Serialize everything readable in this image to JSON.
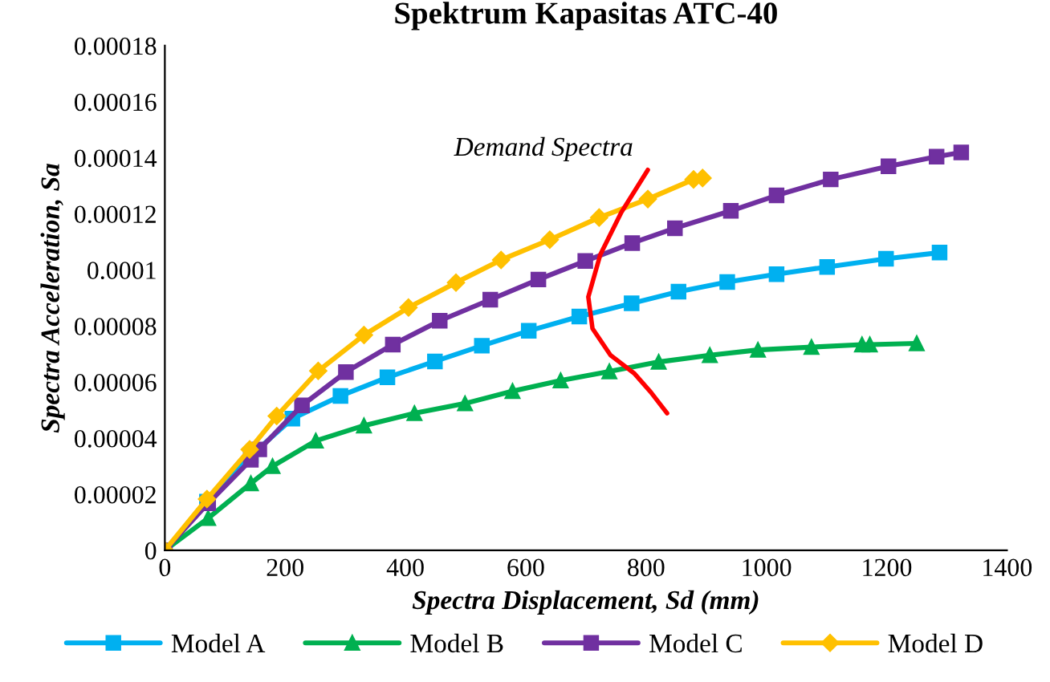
{
  "chart_data": {
    "type": "line",
    "title": "Spektrum Kapasitas ATC-40",
    "xlabel": "Spectra Displacement, Sd (mm)",
    "ylabel": "Spectra Acceleration, Sa",
    "xlim": [
      0,
      1400
    ],
    "xticks": [
      0,
      200,
      400,
      600,
      800,
      1000,
      1200,
      1400
    ],
    "ylim": [
      0,
      0.00018
    ],
    "yticks": [
      0,
      {
        "value": 2e-05,
        "label": "0.00002"
      },
      {
        "value": 4e-05,
        "label": "0.00004"
      },
      {
        "value": 6e-05,
        "label": "0.00006"
      },
      {
        "value": 8e-05,
        "label": "0.00008"
      },
      0.0001,
      0.00012,
      0.00014,
      0.00016,
      0.00018
    ],
    "grid": false,
    "legend": "bottom",
    "line_style": "solid",
    "annotations": [
      "Demand Spectra"
    ],
    "series": [
      {
        "name": "Model A",
        "color": "#00b0f0",
        "marker": "square",
        "x": [
          0,
          70,
          143,
          212,
          292,
          370,
          449,
          527,
          605,
          689,
          776,
          854,
          935,
          1017,
          1101,
          1199,
          1288
        ],
        "values": [
          0,
          1.74e-05,
          3.38e-05,
          4.7e-05,
          5.51e-05,
          6.17e-05,
          6.74e-05,
          7.3e-05,
          7.83e-05,
          8.34e-05,
          8.81e-05,
          9.23e-05,
          9.57e-05,
          9.85e-05,
          0.0001011,
          0.000104,
          0.0001062
        ]
      },
      {
        "name": "Model B",
        "color": "#00b050",
        "marker": "triangle",
        "x": [
          0,
          72,
          143,
          179,
          251,
          331,
          415,
          499,
          578,
          658,
          739,
          821,
          906,
          986,
          1075,
          1159,
          1172,
          1250
        ],
        "values": [
          0,
          1.15e-05,
          2.39e-05,
          3e-05,
          3.91e-05,
          4.45e-05,
          4.89e-05,
          5.24e-05,
          5.68e-05,
          6.06e-05,
          6.38e-05,
          6.72e-05,
          6.96e-05,
          7.15e-05,
          7.25e-05,
          7.34e-05,
          7.34e-05,
          7.38e-05
        ]
      },
      {
        "name": "Model C",
        "color": "#7030a0",
        "marker": "square",
        "x": [
          0,
          72,
          143,
          157,
          228,
          301,
          379,
          457,
          541,
          621,
          699,
          777,
          848,
          941,
          1017,
          1107,
          1203,
          1283,
          1324
        ],
        "values": [
          0,
          1.68e-05,
          3.23e-05,
          3.6e-05,
          5.17e-05,
          6.36e-05,
          7.34e-05,
          8.19e-05,
          8.94e-05,
          9.66e-05,
          0.0001032,
          0.0001096,
          0.0001149,
          0.0001211,
          0.0001266,
          0.0001323,
          0.000137,
          0.0001404,
          0.0001419
        ]
      },
      {
        "name": "Model D",
        "color": "#ffc000",
        "marker": "diamond",
        "x": [
          0,
          70,
          141,
          186,
          255,
          331,
          405,
          484,
          559,
          640,
          722,
          803,
          879,
          894
        ],
        "values": [
          0,
          1.83e-05,
          3.6e-05,
          4.79e-05,
          6.4e-05,
          7.68e-05,
          8.66e-05,
          9.55e-05,
          0.0001036,
          0.0001108,
          0.0001187,
          0.0001253,
          0.0001323,
          0.0001328
        ]
      },
      {
        "color": "#ff0000",
        "marker": "none",
        "x": [
          803,
          759,
          724,
          704,
          711,
          741,
          781,
          808,
          835
        ],
        "values": [
          0.0001357,
          0.0001206,
          0.0001055,
          9.04e-05,
          7.91e-05,
          6.96e-05,
          6.3e-05,
          5.64e-05,
          4.89e-05
        ]
      }
    ]
  }
}
